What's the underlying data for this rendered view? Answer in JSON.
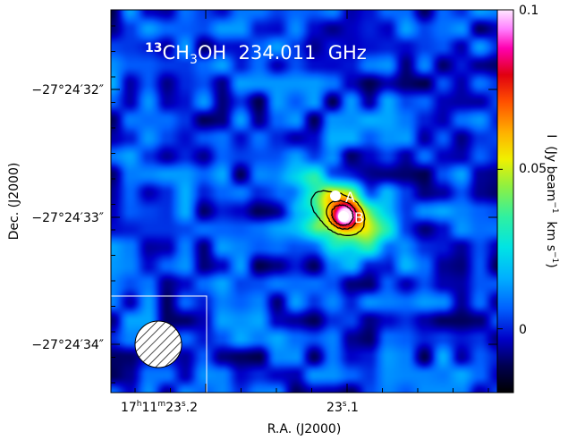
{
  "chart_data": {
    "type": "heatmap",
    "title_parts": {
      "isotope": "13",
      "main1": "CH",
      "sub": "3",
      "main2": "OH  234.011  GHz"
    },
    "xlabel": "R.A. (J2000)",
    "ylabel": "Dec. (J2000)",
    "x_ticks": [
      {
        "label_parts": [
          "17",
          "h",
          "11",
          "m",
          "23",
          "s",
          ".2"
        ],
        "value": "17h11m23.2s"
      },
      {
        "label_parts": [
          "23",
          "s",
          ".1"
        ],
        "value": "23.1s"
      }
    ],
    "y_ticks": [
      {
        "label": "−27°24′32″"
      },
      {
        "label": "−27°24′33″"
      },
      {
        "label": "−27°24′34″"
      }
    ],
    "colorbar": {
      "label_parts": [
        "I  (Jy beam",
        "−1",
        "  km s",
        "−1",
        ")"
      ],
      "ticks": [
        {
          "label": "0.1",
          "value": 0.1
        },
        {
          "label": "0.05",
          "value": 0.05
        },
        {
          "label": "0",
          "value": 0
        }
      ],
      "range": [
        -0.02,
        0.1
      ]
    },
    "sources": [
      {
        "label": "A"
      },
      {
        "label": "B"
      }
    ],
    "contour_levels_relative": [
      0.45,
      0.68,
      0.85
    ],
    "beam": {
      "hatched": true,
      "position": "bottom-left"
    },
    "colors": {
      "frame": "#000000",
      "title_text": "#ffffff",
      "source_marker": "#ffffff",
      "contour": "#000000"
    }
  }
}
